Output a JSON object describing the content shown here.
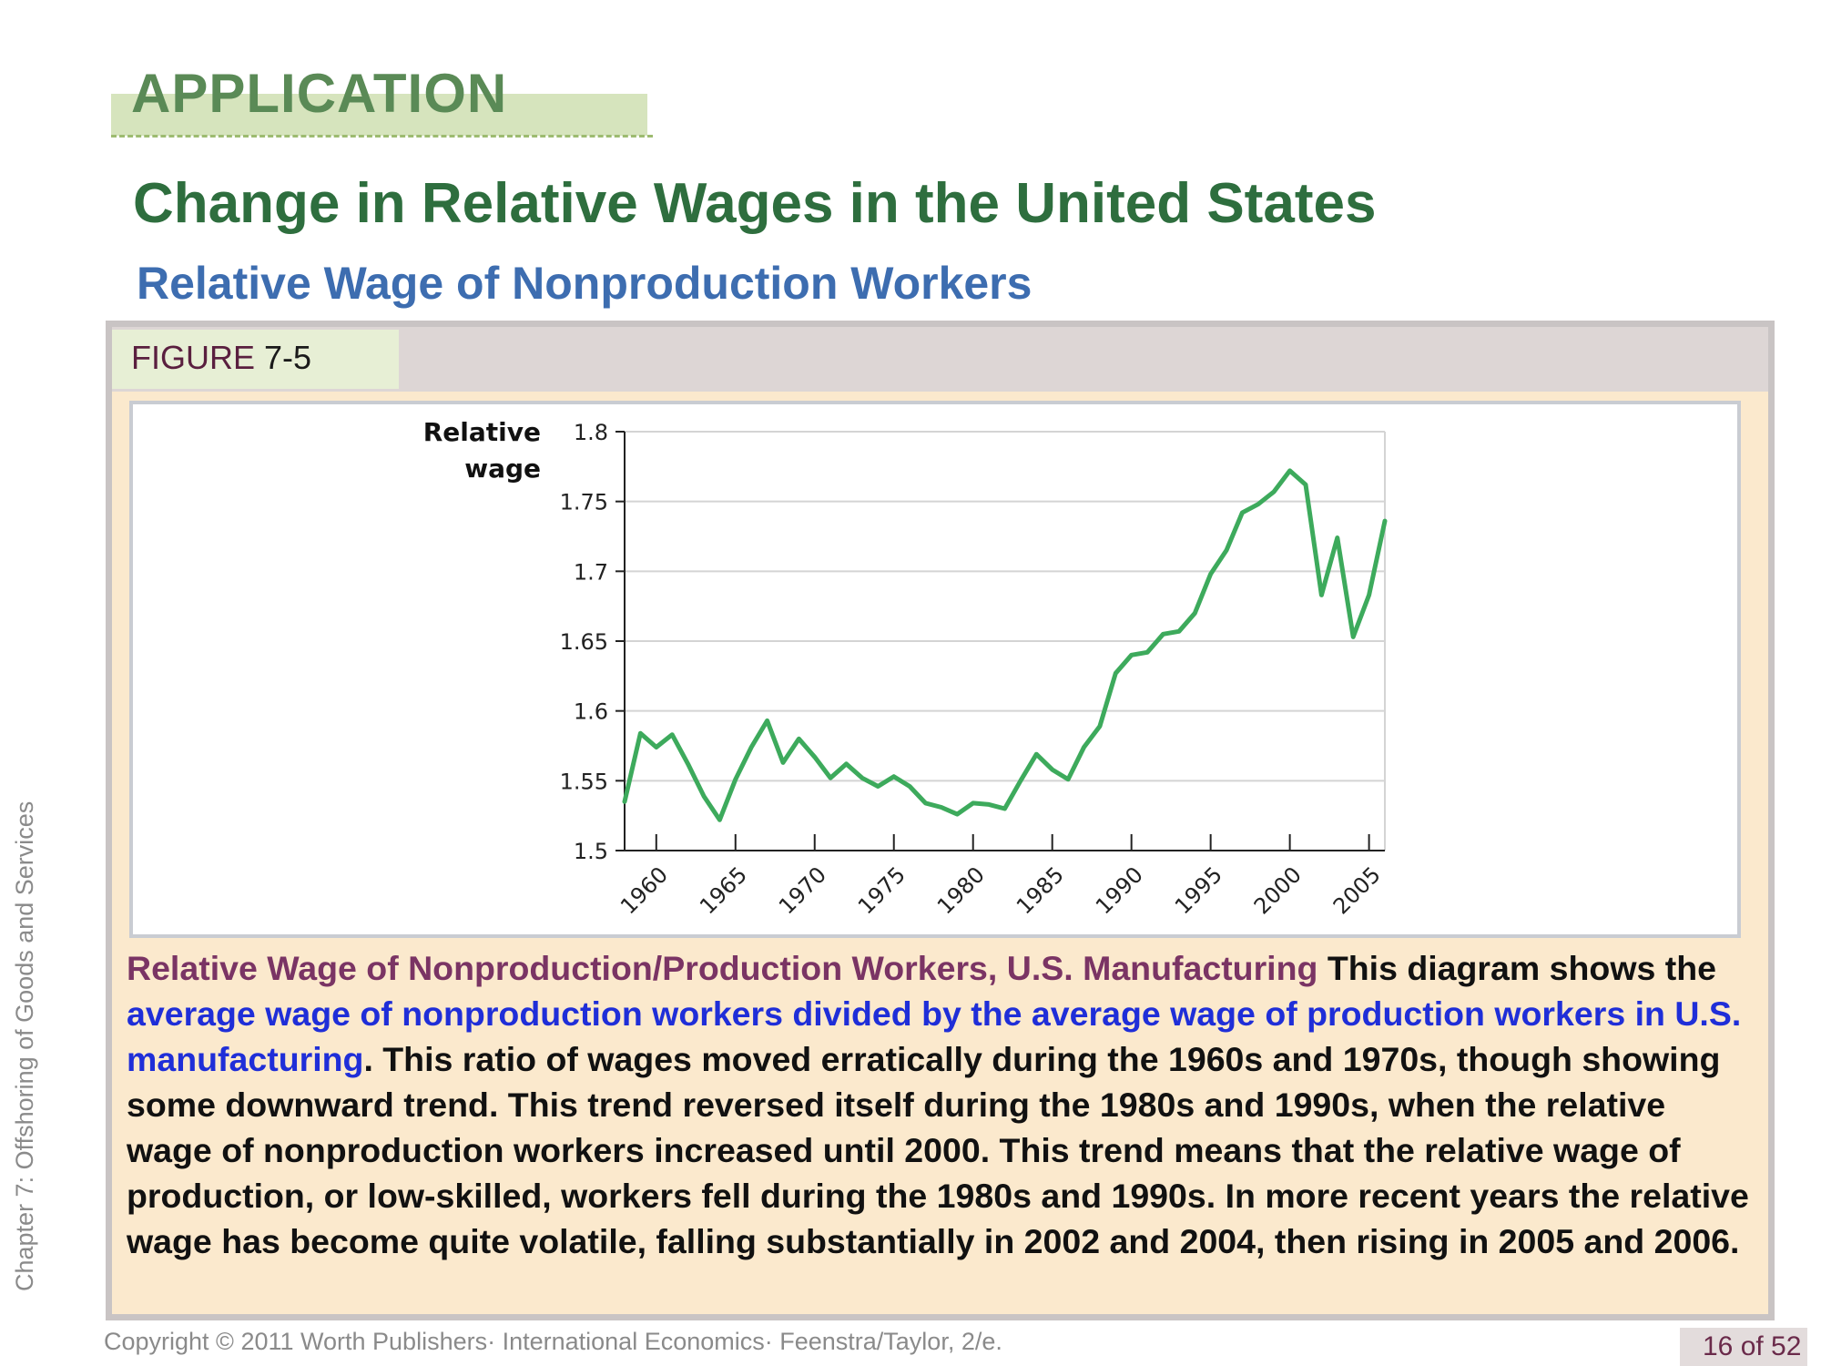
{
  "slide": {
    "section_label": "APPLICATION",
    "title": "Change in Relative Wages in the United States",
    "subtitle": "Relative Wage of Nonproduction Workers",
    "side_label": "Chapter 7: Offshoring of Goods and Services",
    "figure_word": "FIGURE",
    "figure_number": "7-5",
    "caption": {
      "lead": "Relative Wage of Nonproduction/Production Workers, U.S. Manufacturing",
      "part1": " This diagram shows the ",
      "highlight": "average wage of nonproduction workers divided by the average wage of production workers in U.S. manufacturing",
      "part2": ". This ratio of wages moved erratically during the 1960s and 1970s, though showing some downward trend. This trend reversed itself during the 1980s and 1990s, when the relative wage of nonproduction workers increased until 2000. This trend means that the relative wage of production, or low-skilled, workers fell during the 1980s and 1990s.  In more recent years the relative wage has become quite volatile, falling substantially in 2002 and 2004, then rising in 2005 and 2006."
    },
    "footer": "Copyright © 2011 Worth Publishers· International Economics· Feenstra/Taylor, 2/e.",
    "page": "16 of 52"
  },
  "chart_data": {
    "type": "line",
    "ylabel_line1": "Relative",
    "ylabel_line2": "wage",
    "ylim": [
      1.5,
      1.8
    ],
    "yticks": [
      "1.5",
      "1.55",
      "1.6",
      "1.65",
      "1.7",
      "1.75",
      "1.8"
    ],
    "xlim": [
      1958,
      2006
    ],
    "xticks": [
      "1960",
      "1965",
      "1970",
      "1975",
      "1980",
      "1985",
      "1990",
      "1995",
      "2000",
      "2005"
    ],
    "grid": true,
    "line_color": "#3daa5c",
    "series": [
      {
        "x": [
          1958,
          1959,
          1960,
          1961,
          1962,
          1963,
          1964,
          1965,
          1966,
          1967,
          1968,
          1969,
          1970,
          1971,
          1972,
          1973,
          1974,
          1975,
          1976,
          1977,
          1978,
          1979,
          1980,
          1981,
          1982,
          1983,
          1984,
          1985,
          1986,
          1987,
          1988,
          1989,
          1990,
          1991,
          1992,
          1993,
          1994,
          1995,
          1996,
          1997,
          1998,
          1999,
          2000,
          2001,
          2002,
          2003,
          2004,
          2005,
          2006
        ],
        "values": [
          1.535,
          1.584,
          1.574,
          1.583,
          1.562,
          1.539,
          1.522,
          1.551,
          1.574,
          1.593,
          1.563,
          1.58,
          1.567,
          1.552,
          1.562,
          1.552,
          1.546,
          1.553,
          1.546,
          1.534,
          1.531,
          1.526,
          1.534,
          1.533,
          1.53,
          1.55,
          1.569,
          1.558,
          1.551,
          1.574,
          1.589,
          1.627,
          1.64,
          1.642,
          1.655,
          1.657,
          1.67,
          1.698,
          1.715,
          1.742,
          1.748,
          1.757,
          1.772,
          1.762,
          1.683,
          1.724,
          1.653,
          1.683,
          1.736
        ]
      }
    ]
  }
}
